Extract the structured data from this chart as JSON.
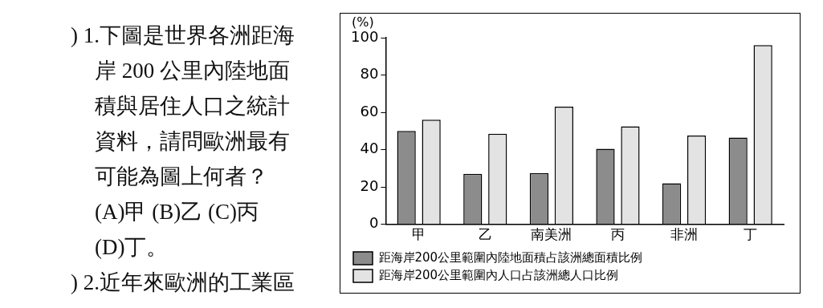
{
  "chart_data": {
    "type": "bar",
    "ylabel": "(%)",
    "categories": [
      "甲",
      "乙",
      "南美洲",
      "丙",
      "非洲",
      "丁"
    ],
    "series": [
      {
        "name": "距海岸200公里範圍內陸地面積占該洲總面積比例",
        "color": "#8c8c8c",
        "values": [
          50,
          27,
          27.5,
          40.5,
          22,
          46.5
        ]
      },
      {
        "name": "距海岸200公里範圍內人口占該洲總人口比例",
        "color": "#e3e3e3",
        "values": [
          56,
          48.5,
          63,
          52.5,
          47.5,
          96
        ]
      }
    ],
    "ylim": [
      0,
      100
    ],
    "yticks": [
      0,
      20,
      40,
      60,
      80,
      100
    ],
    "grid": false,
    "legend": "bottom",
    "annotations": [
      ") 1.下圖是世界各洲距海",
      "岸 200 公里內陸地面",
      "積與居住人口之統計",
      "資料，請問歐洲最有",
      "可能為圖上何者？",
      "(A)甲  (B)乙  (C)丙",
      "(D)丁。",
      ") 2.近年來歐洲的工業區"
    ]
  }
}
